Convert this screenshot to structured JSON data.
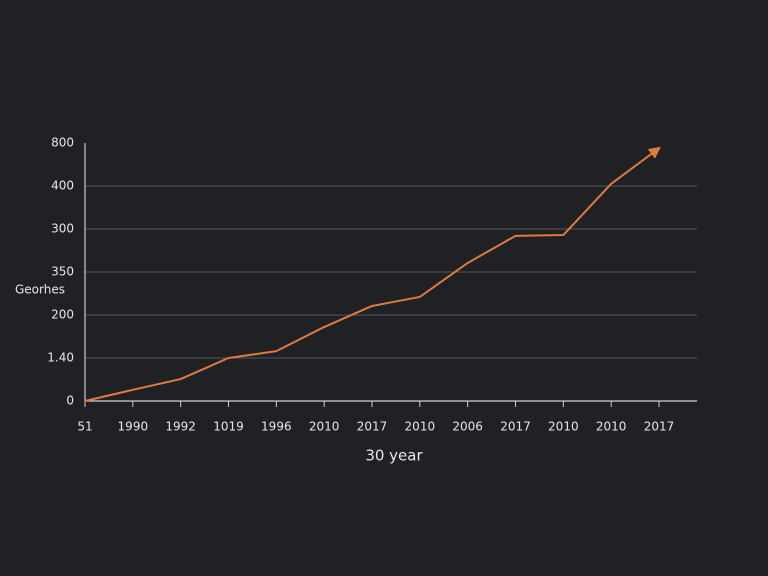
{
  "chart_data": {
    "type": "line",
    "y_label": "Georhes",
    "x_label": "30 year",
    "categories": [
      "51",
      "1990",
      "1992",
      "1019",
      "1996",
      "2010",
      "2017",
      "2010",
      "2006",
      "2017",
      "2010",
      "2010",
      "2017"
    ],
    "series": [
      {
        "color": "#e07a40",
        "values": [
          0,
          26,
          51,
          100,
          116,
          172,
          221,
          242,
          321,
          384,
          386,
          505,
          588
        ]
      }
    ],
    "ylim": [
      0,
      600
    ],
    "yticks": [
      0,
      {
        "value": 100,
        "label": "1.40"
      },
      200,
      {
        "value": 300,
        "label": "350"
      },
      {
        "value": 400,
        "label": "300"
      },
      {
        "value": 500,
        "label": "400"
      },
      {
        "value": 600,
        "label": "800"
      }
    ],
    "grid": true
  }
}
